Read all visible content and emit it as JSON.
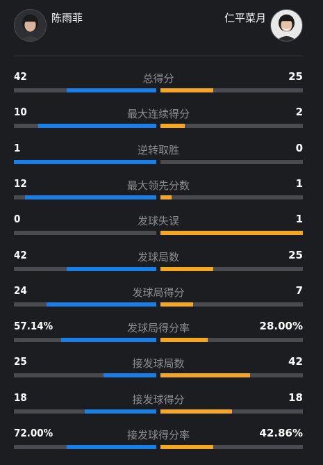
{
  "players": {
    "left": {
      "name": "陈雨菲",
      "color": "#1a7ee6"
    },
    "right": {
      "name": "仁平菜月",
      "color": "#f5a623"
    }
  },
  "stats": [
    {
      "label": "总得分",
      "left": "42",
      "right": "25",
      "left_fill": 0.63,
      "right_fill": 0.37
    },
    {
      "label": "最大连续得分",
      "left": "10",
      "right": "2",
      "left_fill": 0.83,
      "right_fill": 0.17
    },
    {
      "label": "逆转取胜",
      "left": "1",
      "right": "0",
      "left_fill": 1.0,
      "right_fill": 0.0
    },
    {
      "label": "最大领先分数",
      "left": "12",
      "right": "1",
      "left_fill": 0.92,
      "right_fill": 0.08
    },
    {
      "label": "发球失误",
      "left": "0",
      "right": "1",
      "left_fill": 0.0,
      "right_fill": 1.0
    },
    {
      "label": "发球局数",
      "left": "42",
      "right": "25",
      "left_fill": 0.63,
      "right_fill": 0.37
    },
    {
      "label": "发球局得分",
      "left": "24",
      "right": "7",
      "left_fill": 0.77,
      "right_fill": 0.23
    },
    {
      "label": "发球局得分率",
      "left": "57.14%",
      "right": "28.00%",
      "left_fill": 0.67,
      "right_fill": 0.33
    },
    {
      "label": "接发球局数",
      "left": "25",
      "right": "42",
      "left_fill": 0.37,
      "right_fill": 0.63
    },
    {
      "label": "接发球得分",
      "left": "18",
      "right": "18",
      "left_fill": 0.5,
      "right_fill": 0.5
    },
    {
      "label": "接发球得分率",
      "left": "72.00%",
      "right": "42.86%",
      "left_fill": 0.63,
      "right_fill": 0.37
    }
  ]
}
